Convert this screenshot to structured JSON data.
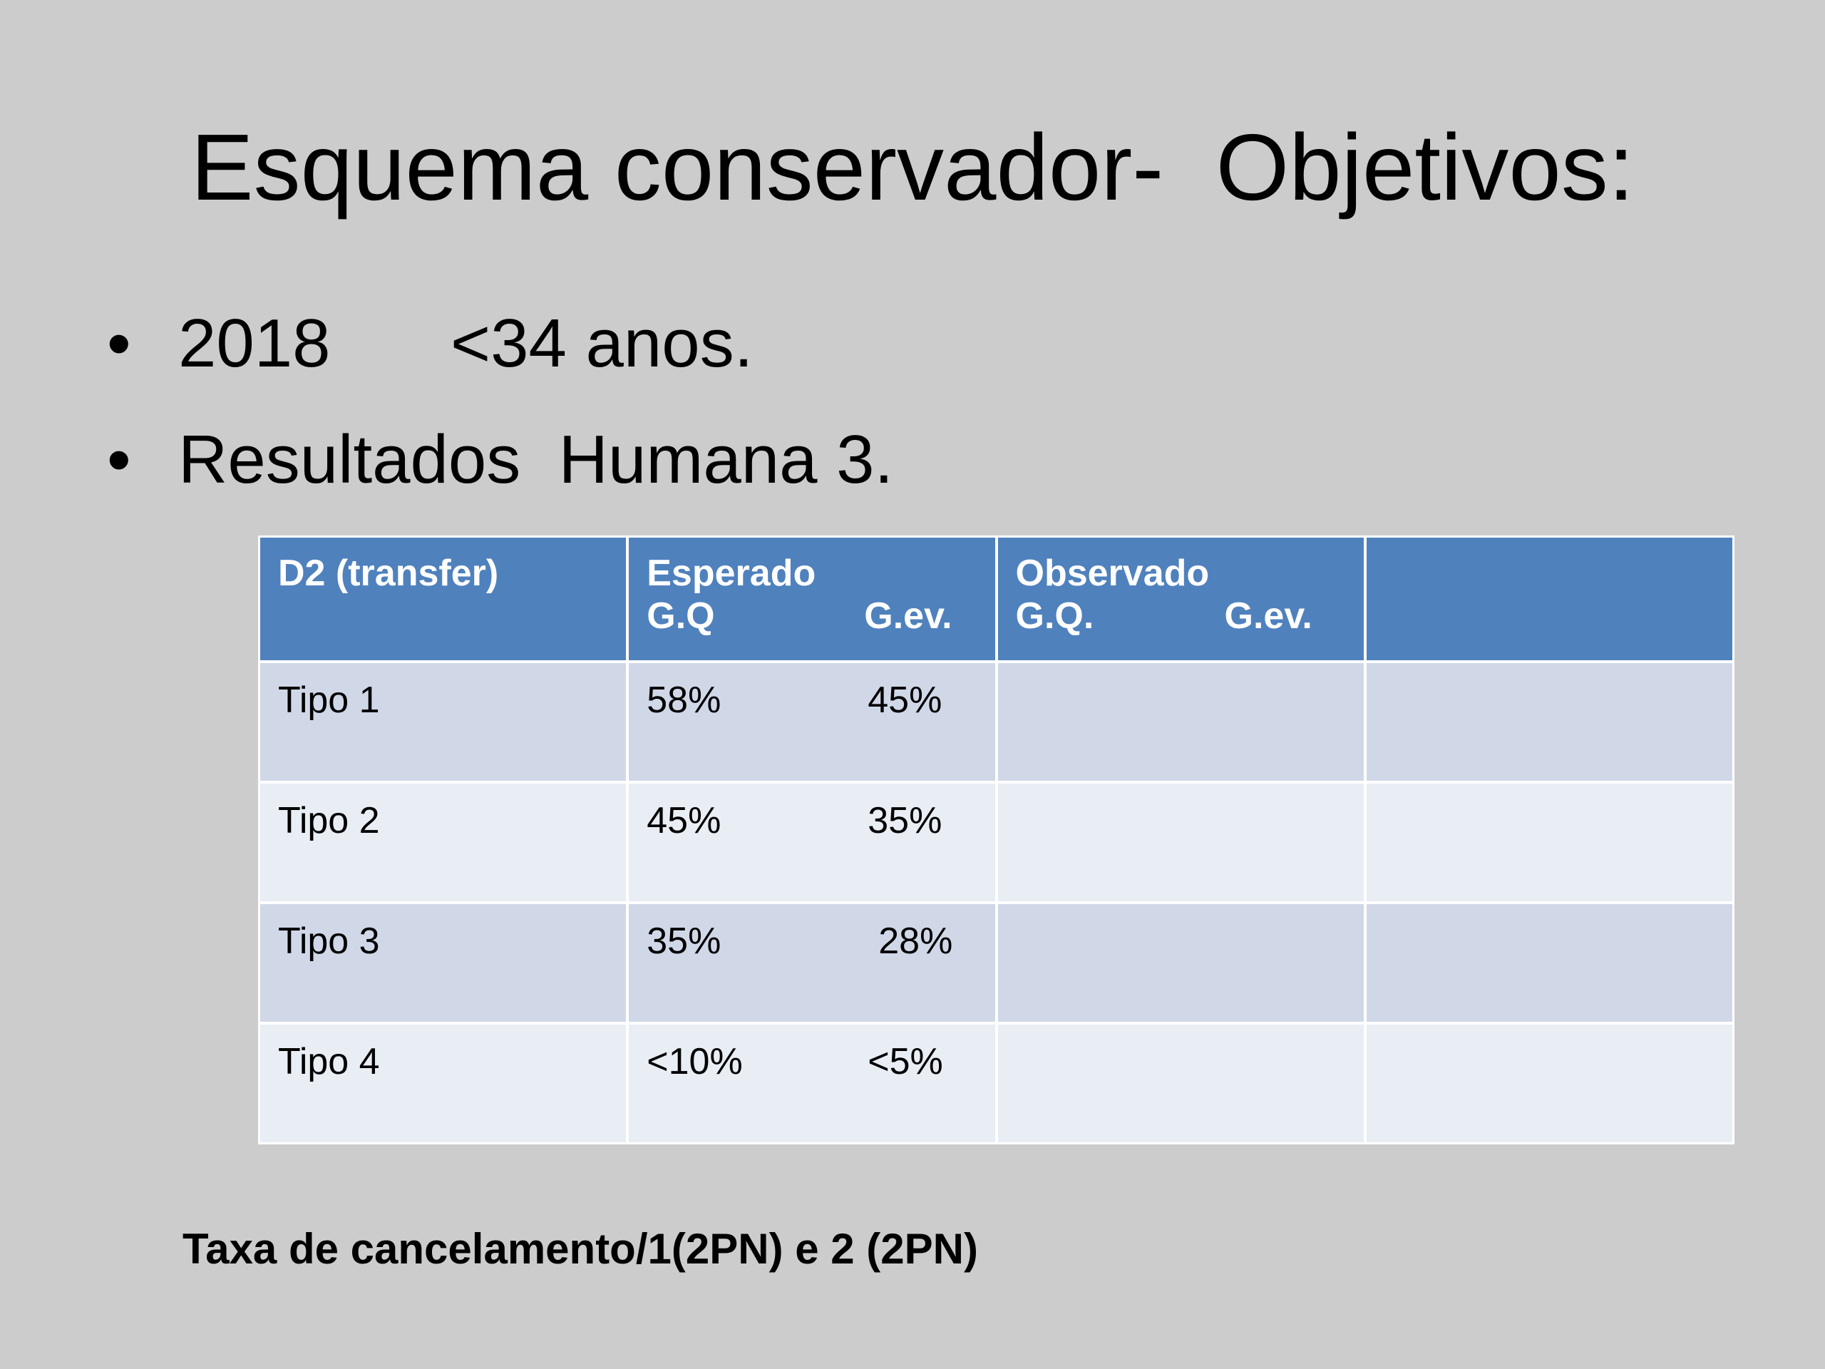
{
  "title": "Esquema conservador-  Objetivos:",
  "bullets": [
    [
      "2018",
      "<34 anos."
    ],
    [
      "Resultados  Humana 3."
    ]
  ],
  "table": {
    "header": [
      "D2 (transfer)",
      {
        "label": "Esperado",
        "sub": [
          "G.Q",
          "G.ev."
        ]
      },
      {
        "label": "Observado",
        "sub": [
          "G.Q.",
          "G.ev."
        ]
      }
    ],
    "rows": [
      [
        "Tipo 1",
        "58%",
        "45%"
      ],
      [
        "Tipo 2",
        "45%",
        "35%"
      ],
      [
        "Tipo 3",
        "35%",
        "28%"
      ],
      [
        "Tipo 4",
        "<10%",
        "<5%"
      ]
    ]
  },
  "footer": "Taxa de cancelamento/1(2PN) e 2 (2PN)"
}
